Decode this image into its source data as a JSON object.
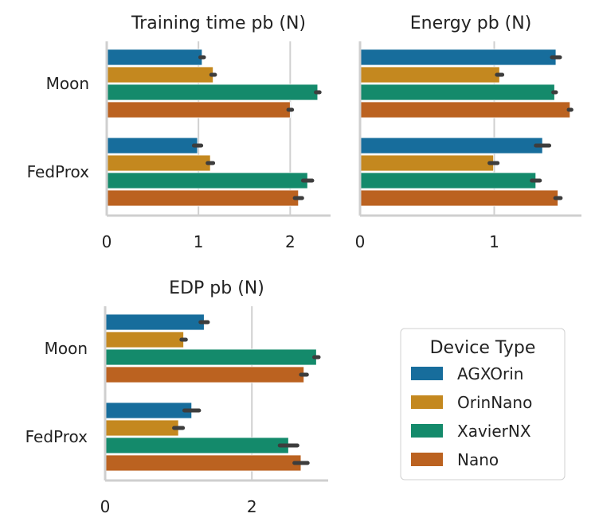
{
  "chart_data": [
    {
      "type": "bar",
      "orientation": "horizontal",
      "title": "Training time pb (N)",
      "categories": [
        "Moon",
        "FedProx"
      ],
      "xlim": [
        0,
        2.44
      ],
      "xticks": [
        0,
        1,
        2
      ],
      "grid": "vertical",
      "series": [
        {
          "name": "AGXOrin",
          "values": [
            1.04,
            0.99
          ],
          "errors": [
            0.02,
            0.04
          ]
        },
        {
          "name": "OrinNano",
          "values": [
            1.16,
            1.13
          ],
          "errors": [
            0.02,
            0.03
          ]
        },
        {
          "name": "XavierNX",
          "values": [
            2.3,
            2.19
          ],
          "errors": [
            0.02,
            0.05
          ]
        },
        {
          "name": "Nano",
          "values": [
            2.0,
            2.09
          ],
          "errors": [
            0.02,
            0.04
          ]
        }
      ]
    },
    {
      "type": "bar",
      "orientation": "horizontal",
      "title": "Energy pb (N)",
      "categories": [
        "Moon",
        "FedProx"
      ],
      "xlim": [
        0,
        1.65
      ],
      "xticks": [
        0,
        1
      ],
      "grid": "vertical",
      "series": [
        {
          "name": "AGXOrin",
          "values": [
            1.46,
            1.36
          ],
          "errors": [
            0.03,
            0.05
          ]
        },
        {
          "name": "OrinNano",
          "values": [
            1.04,
            0.995
          ],
          "errors": [
            0.02,
            0.03
          ]
        },
        {
          "name": "XavierNX",
          "values": [
            1.45,
            1.31
          ],
          "errors": [
            0.01,
            0.03
          ]
        },
        {
          "name": "Nano",
          "values": [
            1.565,
            1.475
          ],
          "errors": [
            0.01,
            0.02
          ]
        }
      ]
    },
    {
      "type": "bar",
      "orientation": "horizontal",
      "title": "EDP pb (N)",
      "categories": [
        "Moon",
        "FedProx"
      ],
      "xlim": [
        0,
        3.04
      ],
      "xticks": [
        0,
        2
      ],
      "grid": "vertical",
      "series": [
        {
          "name": "AGXOrin",
          "values": [
            1.35,
            1.18
          ],
          "errors": [
            0.05,
            0.1
          ]
        },
        {
          "name": "OrinNano",
          "values": [
            1.07,
            1.0
          ],
          "errors": [
            0.03,
            0.06
          ]
        },
        {
          "name": "XavierNX",
          "values": [
            2.88,
            2.5
          ],
          "errors": [
            0.03,
            0.12
          ]
        },
        {
          "name": "Nano",
          "values": [
            2.71,
            2.67
          ],
          "errors": [
            0.04,
            0.09
          ]
        }
      ]
    }
  ],
  "legend": {
    "title": "Device Type",
    "placement": "bottom-right",
    "entries": [
      "AGXOrin",
      "OrinNano",
      "XavierNX",
      "Nano"
    ]
  },
  "colors": {
    "AGXOrin": "#176d9c",
    "OrinNano": "#c4881f",
    "XavierNX": "#148a6b",
    "Nano": "#bb6220"
  }
}
